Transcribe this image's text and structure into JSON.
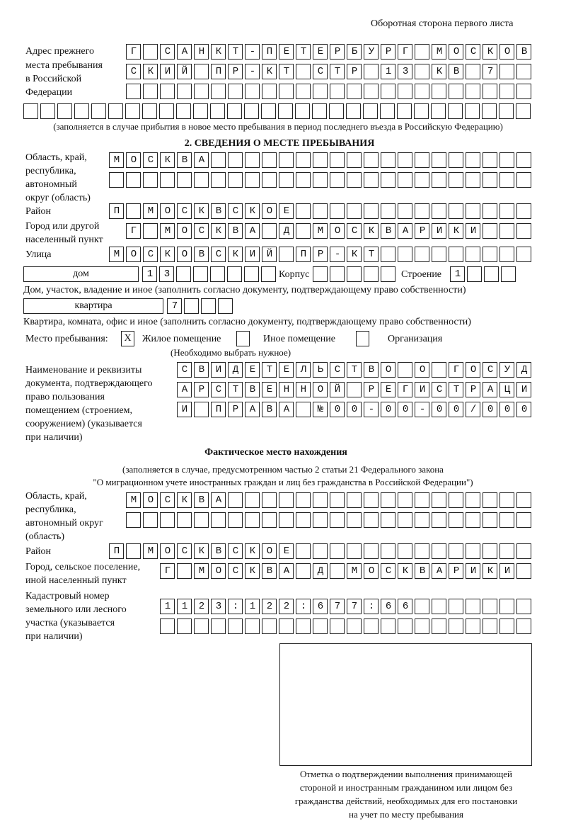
{
  "header": {
    "title": "Оборотная сторона первого листа"
  },
  "previous_address": {
    "label": [
      "Адрес прежнего",
      "места пребывания",
      "в Российской",
      "Федерации"
    ],
    "rows": [
      "Г САНКТ-ПЕТЕРБУРГ МОСКОВ",
      "СКИЙ ПР-КТ СТР 13 КВ 7",
      "",
      ""
    ],
    "note": "(заполняется в случае прибытия в новое место пребывания в период последнего въезда в Российскую Федерацию)"
  },
  "section2": {
    "title": "2. СВЕДЕНИЯ О МЕСТЕ ПРЕБЫВАНИЯ",
    "region_label": [
      "Область, край,",
      "республика,",
      "автономный",
      "округ (область)"
    ],
    "region_rows": [
      "МОСКВА",
      ""
    ],
    "district_label": "Район",
    "district": "П МОСКВСКОЕ",
    "city_label": [
      "Город или другой",
      "населенный пункт"
    ],
    "city": "Г МОСКВА Д МОСКВАРИКИ",
    "street_label": "Улица",
    "street": "МОСКОВСКИЙ ПР-КТ",
    "house_type": "дом",
    "house_number": "13",
    "korpus_label": "Корпус",
    "korpus": "",
    "building_label": "Строение",
    "building": "1",
    "house_note": "Дом, участок, владение и иное (заполнить согласно документу, подтверждающему право собственности)",
    "apartment_type": "квартира",
    "apartment_number": "7",
    "apartment_note": "Квартира, комната, офис и иное (заполнить согласно документу, подтверждающему право собственности)",
    "stay_place_label": "Место пребывания:",
    "stay_options": [
      {
        "label": "Жилое помещение",
        "mark": "Х"
      },
      {
        "label": "Иное помещение",
        "mark": ""
      },
      {
        "label": "Организация",
        "mark": ""
      }
    ],
    "stay_hint": "(Необходимо выбрать нужное)",
    "document_label": [
      "Наименование и реквизиты",
      "документа, подтверждающего",
      "право пользования",
      "помещением (строением,",
      "сооружением) (указывается",
      "при наличии)"
    ],
    "document_rows": [
      "СВИДЕТЕЛЬСТВО О ГОСУД",
      "АРСТВЕННОЙ РЕГИСТРАЦИ",
      "И ПРАВА №00-00-00/000"
    ]
  },
  "actual_location": {
    "title": "Фактическое место нахождения",
    "note": [
      "(заполняется в случае, предусмотренном частью 2 статьи 21 Федерального закона",
      "\"О миграционном учете иностранных граждан и лиц без гражданства в Российской Федерации\")"
    ],
    "region_label": [
      "Область, край,",
      "республика,",
      "автономный округ",
      "(область)"
    ],
    "region_rows": [
      "МОСКВА",
      ""
    ],
    "district_label": "Район",
    "district": "П МОСКВСКОЕ",
    "city_label": [
      "Город, сельское поселение,",
      "иной населенный пункт"
    ],
    "city": "Г МОСКВА Д МОСКВАРИКИ",
    "cadastral_label": [
      "Кадастровый номер",
      "земельного или лесного",
      "участка (указывается",
      "при наличии)"
    ],
    "cadastral_rows": [
      "1123:122:677:66",
      ""
    ]
  },
  "stamp": {
    "caption": [
      "Отметка о подтверждении выполнения принимающей",
      "стороной и иностранным гражданином или лицом без",
      "гражданства действий, необходимых для его постановки",
      "на учет по месту пребывания"
    ]
  }
}
